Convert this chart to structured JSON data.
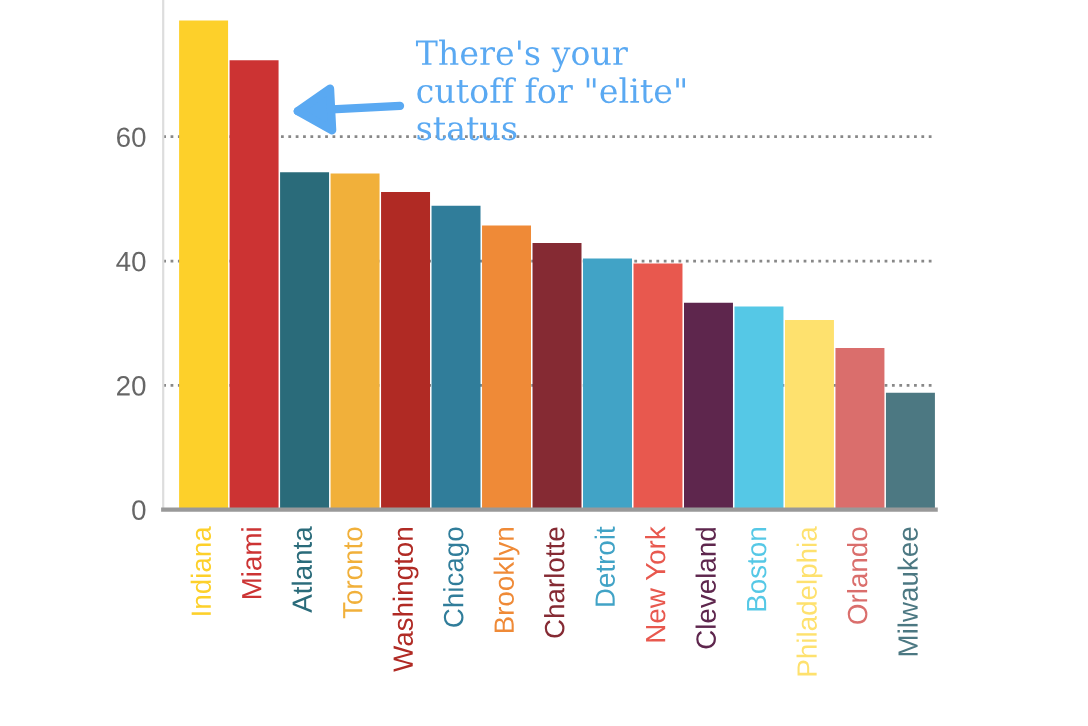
{
  "chart_data": {
    "type": "bar",
    "categories": [
      "Indiana",
      "Miami",
      "Atlanta",
      "Toronto",
      "Washington",
      "Chicago",
      "Brooklyn",
      "Charlotte",
      "Detroit",
      "New York",
      "Cleveland",
      "Boston",
      "Philadelphia",
      "Orlando",
      "Milwaukee"
    ],
    "values": [
      78.7,
      72.3,
      54.3,
      54.1,
      51.1,
      48.9,
      45.7,
      42.9,
      40.4,
      39.6,
      33.3,
      32.7,
      30.5,
      26,
      18.8
    ],
    "colors": [
      "#fdd02a",
      "#cc3333",
      "#2a6b7a",
      "#f1b03a",
      "#b02a24",
      "#307d9a",
      "#ef8a37",
      "#852a33",
      "#41a3c6",
      "#e8584e",
      "#5e264d",
      "#55c8e6",
      "#fee16e",
      "#da6e6c",
      "#4c7882"
    ],
    "ylim": [
      0,
      82
    ],
    "yticks": [
      0,
      20,
      40,
      60
    ],
    "grid": "y",
    "annotations": [
      "There's your\ncutoff for \"elite\"\nstatus"
    ]
  }
}
